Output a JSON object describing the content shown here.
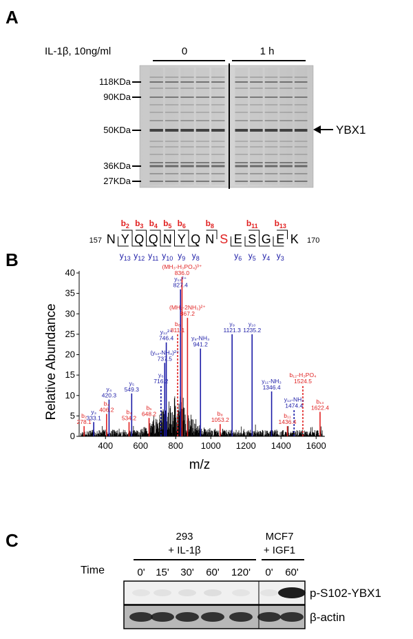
{
  "panelA": {
    "label": "A",
    "treatment": "IL-1β, 10ng/ml",
    "groups": [
      "0",
      "1 h"
    ],
    "markers": [
      "118KDa",
      "90KDa",
      "50KDa",
      "36KDa",
      "27KDa"
    ],
    "band_label": "YBX1",
    "lanes_per_group": 5
  },
  "panelB": {
    "label": "B",
    "seq_start": "157",
    "seq_end": "170",
    "sequence": [
      "N",
      "Y",
      "Q",
      "Q",
      "N",
      "Y",
      "Q",
      "N",
      "S",
      "E",
      "S",
      "G",
      "E",
      "K"
    ],
    "phospho_residue_index": 8,
    "b_ions": [
      {
        "name": "b",
        "sub": "2",
        "after": 1
      },
      {
        "name": "b",
        "sub": "3",
        "after": 2
      },
      {
        "name": "b",
        "sub": "4",
        "after": 3
      },
      {
        "name": "b",
        "sub": "5",
        "after": 4
      },
      {
        "name": "b",
        "sub": "6",
        "after": 5
      },
      {
        "name": "b",
        "sub": "8",
        "after": 7
      },
      {
        "name": "b",
        "sub": "11",
        "after": 10
      },
      {
        "name": "b",
        "sub": "13",
        "after": 12
      }
    ],
    "y_ions": [
      {
        "name": "y",
        "sub": "13",
        "after": 0
      },
      {
        "name": "y",
        "sub": "12",
        "after": 1
      },
      {
        "name": "y",
        "sub": "11",
        "after": 2
      },
      {
        "name": "y",
        "sub": "10",
        "after": 3
      },
      {
        "name": "y",
        "sub": "9",
        "after": 4
      },
      {
        "name": "y",
        "sub": "8",
        "after": 5
      },
      {
        "name": "y",
        "sub": "6",
        "after": 8
      },
      {
        "name": "y",
        "sub": "5",
        "after": 9
      },
      {
        "name": "y",
        "sub": "4",
        "after": 10
      },
      {
        "name": "y",
        "sub": "3",
        "after": 11
      }
    ],
    "colors": {
      "b": "#e02020",
      "y": "#1a1aa6",
      "noise": "#000000"
    }
  },
  "chart_data": {
    "type": "bar",
    "xlabel": "m/z",
    "ylabel": "Relative Abundance",
    "xlim": [
      250,
      1650
    ],
    "ylim": [
      0,
      40
    ],
    "xticks": [
      400,
      600,
      800,
      1000,
      1200,
      1400,
      1600
    ],
    "yticks": [
      0,
      5,
      10,
      15,
      20,
      25,
      30,
      35,
      40
    ],
    "series": [
      {
        "ion_type": "b",
        "peaks": [
          {
            "mz": 278.1,
            "intensity": 2.5,
            "label": "b₂",
            "mz_label": "278.1"
          },
          {
            "mz": 406.2,
            "intensity": 5.5,
            "label": "b₃",
            "mz_label": "406.2"
          },
          {
            "mz": 534.2,
            "intensity": 3.5,
            "label": "b₄",
            "mz_label": "534.2"
          },
          {
            "mz": 648.2,
            "intensity": 4.5,
            "label": "b₅",
            "mz_label": "648.2"
          },
          {
            "mz": 811.1,
            "intensity": 25,
            "label": "b₆",
            "mz_label": "811.1",
            "dashed": true
          },
          {
            "mz": 836.0,
            "intensity": 39,
            "label": "(MH₃-H₃PO₄)³⁺",
            "mz_label": "836.0"
          },
          {
            "mz": 867.2,
            "intensity": 29,
            "label": "(MH₂-2NH₃)²⁺",
            "mz_label": "867.2"
          },
          {
            "mz": 1053.2,
            "intensity": 3,
            "label": "b₈",
            "mz_label": "1053.2"
          },
          {
            "mz": 1436.4,
            "intensity": 2.5,
            "label": "b₁₁",
            "mz_label": "1436.4"
          },
          {
            "mz": 1524.5,
            "intensity": 12.5,
            "label": "b₁₂-H₃PO₄",
            "mz_label": "1524.5",
            "dashed": true
          },
          {
            "mz": 1622.4,
            "intensity": 6,
            "label": "b₁₃",
            "mz_label": "1622.4"
          }
        ]
      },
      {
        "ion_type": "y",
        "peaks": [
          {
            "mz": 333.1,
            "intensity": 3.5,
            "label": "y₃",
            "mz_label": "333.1"
          },
          {
            "mz": 420.3,
            "intensity": 9,
            "label": "y₄",
            "mz_label": "420.3"
          },
          {
            "mz": 549.3,
            "intensity": 10.5,
            "label": "y₅",
            "mz_label": "549.3"
          },
          {
            "mz": 716.2,
            "intensity": 12.5,
            "label": "y₆",
            "mz_label": "716.2",
            "dashed": true
          },
          {
            "mz": 737.5,
            "intensity": 18,
            "label": "(y₁₂-NH₃)²⁺",
            "mz_label": "737.5"
          },
          {
            "mz": 746.4,
            "intensity": 23,
            "label": "y₁₂²⁺",
            "mz_label": "746.4"
          },
          {
            "mz": 827.4,
            "intensity": 36,
            "label": "y₁₃²⁺",
            "mz_label": "827.4"
          },
          {
            "mz": 941.2,
            "intensity": 21.5,
            "label": "y₈-NH₃",
            "mz_label": "941.2"
          },
          {
            "mz": 1121.3,
            "intensity": 25,
            "label": "y₉",
            "mz_label": "1121.3"
          },
          {
            "mz": 1235.2,
            "intensity": 25,
            "label": "y₁₀",
            "mz_label": "1235.2"
          },
          {
            "mz": 1346.4,
            "intensity": 11,
            "label": "y₁₁-NH₃",
            "mz_label": "1346.4"
          },
          {
            "mz": 1474.4,
            "intensity": 6.5,
            "label": "y₁₂-NH₃",
            "mz_label": "1474.4",
            "dashed": true
          }
        ]
      }
    ]
  },
  "panelC": {
    "label": "C",
    "group1": {
      "line1": "293",
      "line2": "+ IL-1β"
    },
    "group2": {
      "line1": "MCF7",
      "line2": "+ IGF1"
    },
    "time_label": "Time",
    "times": [
      "0'",
      "15'",
      "30'",
      "60'",
      "120'",
      "0'",
      "60'"
    ],
    "blot_labels": [
      "p-S102-YBX1",
      "β-actin"
    ],
    "phospho_signal": [
      0.05,
      0.06,
      0.07,
      0.08,
      0.05,
      0.05,
      0.95
    ]
  }
}
